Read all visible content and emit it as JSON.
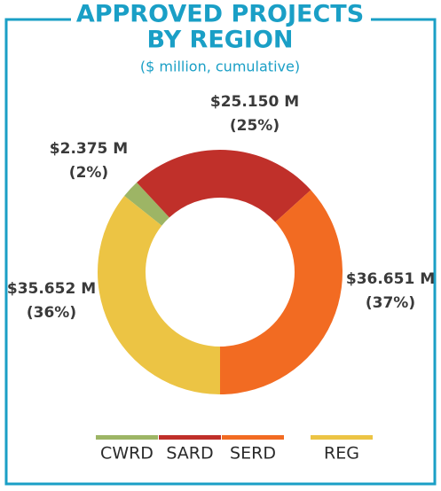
{
  "chart_data": {
    "type": "donut",
    "title": [
      "APPROVED PROJECTS",
      "BY REGION"
    ],
    "subtitle": "($ million, cumulative)",
    "categories": [
      "CWRD",
      "SARD",
      "SERD",
      "REG"
    ],
    "values": [
      2.375,
      25.15,
      36.651,
      35.652
    ],
    "value_labels": [
      "$2.375 M",
      "$25.150 M",
      "$36.651 M",
      "$35.652 M"
    ],
    "share_labels": [
      "(2%)",
      "(25%)",
      "(37%)",
      "(36%)"
    ],
    "colors": [
      "#9db565",
      "#c0302a",
      "#f26b22",
      "#ecc444"
    ],
    "legend": "bottom"
  }
}
